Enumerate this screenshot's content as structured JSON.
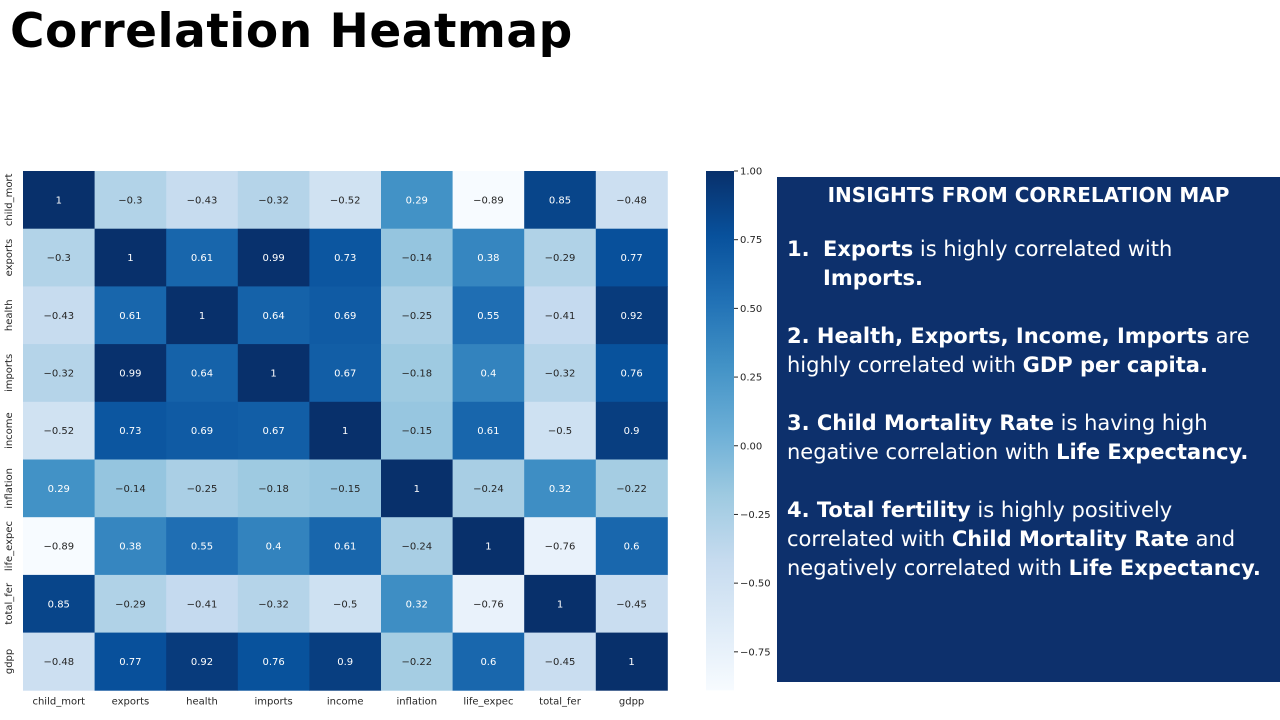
{
  "page": {
    "title": "Correlation Heatmap"
  },
  "chart_data": {
    "type": "heatmap",
    "title": "",
    "xlabel": "",
    "ylabel": "",
    "x_categories": [
      "child_mort",
      "exports",
      "health",
      "imports",
      "income",
      "inflation",
      "life_expec",
      "total_fer",
      "gdpp"
    ],
    "y_categories": [
      "child_mort",
      "exports",
      "health",
      "imports",
      "income",
      "inflation",
      "life_expec",
      "total_fer",
      "gdpp"
    ],
    "values": [
      [
        1,
        -0.3,
        -0.43,
        -0.32,
        -0.52,
        0.29,
        -0.89,
        0.85,
        -0.48
      ],
      [
        -0.3,
        1,
        0.61,
        0.99,
        0.73,
        -0.14,
        0.38,
        -0.29,
        0.77
      ],
      [
        -0.43,
        0.61,
        1,
        0.64,
        0.69,
        -0.25,
        0.55,
        -0.41,
        0.92
      ],
      [
        -0.32,
        0.99,
        0.64,
        1,
        0.67,
        -0.18,
        0.4,
        -0.32,
        0.76
      ],
      [
        -0.52,
        0.73,
        0.69,
        0.67,
        1,
        -0.15,
        0.61,
        -0.5,
        0.9
      ],
      [
        0.29,
        -0.14,
        -0.25,
        -0.18,
        -0.15,
        1,
        -0.24,
        0.32,
        -0.22
      ],
      [
        -0.89,
        0.38,
        0.55,
        0.4,
        0.61,
        -0.24,
        1,
        -0.76,
        0.6
      ],
      [
        0.85,
        -0.29,
        -0.41,
        -0.32,
        -0.5,
        0.32,
        -0.76,
        1,
        -0.45
      ],
      [
        -0.48,
        0.77,
        0.92,
        0.76,
        0.9,
        -0.22,
        0.6,
        -0.45,
        1
      ]
    ],
    "colorbar": {
      "range": [
        -0.89,
        1
      ],
      "ticks": [
        1.0,
        0.75,
        0.5,
        0.25,
        0.0,
        -0.25,
        -0.5,
        -0.75
      ],
      "tick_labels": [
        "1.00",
        "0.75",
        "0.50",
        "0.25",
        "0.00",
        "−0.25",
        "−0.50",
        "−0.75"
      ],
      "colormap": "Blues",
      "colors": [
        "#f7fbff",
        "#deebf7",
        "#c6dbef",
        "#9ecae1",
        "#6baed6",
        "#4292c6",
        "#2171b5",
        "#08519c",
        "#08306b"
      ]
    },
    "annotations": true,
    "legend": "colorbar-right"
  },
  "insights": {
    "title": "INSIGHTS FROM CORRELATION MAP",
    "item1": {
      "num": "1.",
      "b1": "Exports",
      "t1": " is highly correlated with ",
      "b2": "Imports."
    },
    "item2": {
      "b1": "2. Health, Exports, Income, Imports",
      "t1": " are highly correlated with ",
      "b2": "GDP per capita."
    },
    "item3": {
      "b1": "3. Child Mortality Rate",
      "t1": " is having high negative correlation with ",
      "b2": "Life Expectancy."
    },
    "item4": {
      "b1": "4. Total fertility",
      "t1": " is highly positively correlated with ",
      "b2": "Child Mortality Rate",
      "t2": " and negatively correlated with ",
      "b3": "Life Expectancy."
    }
  }
}
